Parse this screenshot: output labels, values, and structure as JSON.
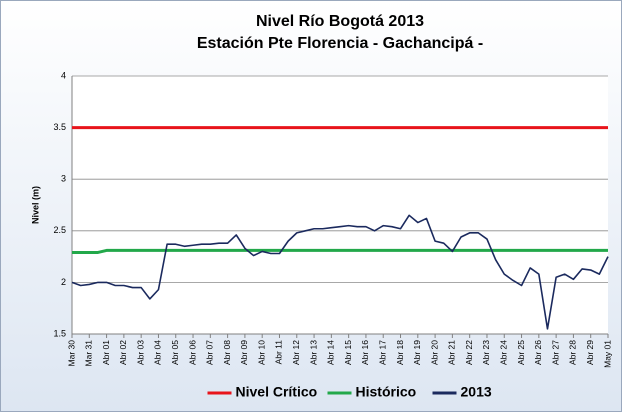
{
  "chart_data": {
    "type": "line",
    "title": "Nivel Río Bogotá 2013",
    "subtitle": "Estación Pte Florencia - Gachancipá -",
    "y_label": "Nivel (m)",
    "categories": [
      "Mar 30",
      null,
      "Mar 31",
      null,
      "Abr 01",
      null,
      "Abr 02",
      null,
      "Abr 03",
      null,
      "Abr 04",
      null,
      "Abr 05",
      null,
      "Abr 06",
      null,
      "Abr 07",
      null,
      "Abr 08",
      null,
      "Abr 09",
      null,
      "Abr 10",
      null,
      "Abr 11",
      null,
      "Abr 12",
      null,
      "Abr 13",
      null,
      "Abr 14",
      null,
      "Abr 15",
      null,
      "Abr 16",
      null,
      "Abr 17",
      null,
      "Abr 18",
      null,
      "Abr 19",
      null,
      "Abr 20",
      null,
      "Abr 21",
      null,
      "Abr 22",
      null,
      "Abr 23",
      null,
      "Abr 24",
      null,
      "Abr 25",
      null,
      "Abr 26",
      null,
      "Abr 27",
      null,
      "Abr 28",
      null,
      "Abr 29",
      null,
      "May 01"
    ],
    "series": [
      {
        "name": "Nivel Crítico",
        "color": "#e8141b",
        "width": 3,
        "values": [
          3.5,
          3.5,
          3.5,
          3.5,
          3.5,
          3.5,
          3.5,
          3.5,
          3.5,
          3.5,
          3.5,
          3.5,
          3.5,
          3.5,
          3.5,
          3.5,
          3.5,
          3.5,
          3.5,
          3.5,
          3.5,
          3.5,
          3.5,
          3.5,
          3.5,
          3.5,
          3.5,
          3.5,
          3.5,
          3.5,
          3.5,
          3.5,
          3.5,
          3.5,
          3.5,
          3.5,
          3.5,
          3.5,
          3.5,
          3.5,
          3.5,
          3.5,
          3.5,
          3.5,
          3.5,
          3.5,
          3.5,
          3.5,
          3.5,
          3.5,
          3.5,
          3.5,
          3.5,
          3.5,
          3.5,
          3.5,
          3.5,
          3.5,
          3.5,
          3.5,
          3.5,
          3.5,
          3.5
        ]
      },
      {
        "name": "Histórico",
        "color": "#22a84a",
        "width": 3,
        "values": [
          2.29,
          2.29,
          2.29,
          2.29,
          2.31,
          2.31,
          2.31,
          2.31,
          2.31,
          2.31,
          2.31,
          2.31,
          2.31,
          2.31,
          2.31,
          2.31,
          2.31,
          2.31,
          2.31,
          2.31,
          2.31,
          2.31,
          2.31,
          2.31,
          2.31,
          2.31,
          2.31,
          2.31,
          2.31,
          2.31,
          2.31,
          2.31,
          2.31,
          2.31,
          2.31,
          2.31,
          2.31,
          2.31,
          2.31,
          2.31,
          2.31,
          2.31,
          2.31,
          2.31,
          2.31,
          2.31,
          2.31,
          2.31,
          2.31,
          2.31,
          2.31,
          2.31,
          2.31,
          2.31,
          2.31,
          2.31,
          2.31,
          2.31,
          2.31,
          2.31,
          2.31,
          2.31,
          2.31
        ]
      },
      {
        "name": "2013",
        "color": "#1b2a5e",
        "width": 1.6,
        "values": [
          2.0,
          1.97,
          1.98,
          2.0,
          2.0,
          1.97,
          1.97,
          1.95,
          1.95,
          1.84,
          1.93,
          2.37,
          2.37,
          2.35,
          2.36,
          2.37,
          2.37,
          2.38,
          2.38,
          2.46,
          2.33,
          2.26,
          2.3,
          2.28,
          2.28,
          2.4,
          2.48,
          2.5,
          2.52,
          2.52,
          2.53,
          2.54,
          2.55,
          2.54,
          2.54,
          2.5,
          2.55,
          2.54,
          2.52,
          2.65,
          2.58,
          2.62,
          2.4,
          2.38,
          2.3,
          2.44,
          2.48,
          2.48,
          2.42,
          2.22,
          2.08,
          2.02,
          1.97,
          2.14,
          2.08,
          1.55,
          2.05,
          2.08,
          2.03,
          2.13,
          2.12,
          2.08,
          2.25
        ]
      }
    ],
    "ylim": [
      1.5,
      4
    ],
    "yticks": [
      1.5,
      2,
      2.5,
      3,
      3.5,
      4
    ],
    "grid": true,
    "legend": "bottom"
  }
}
